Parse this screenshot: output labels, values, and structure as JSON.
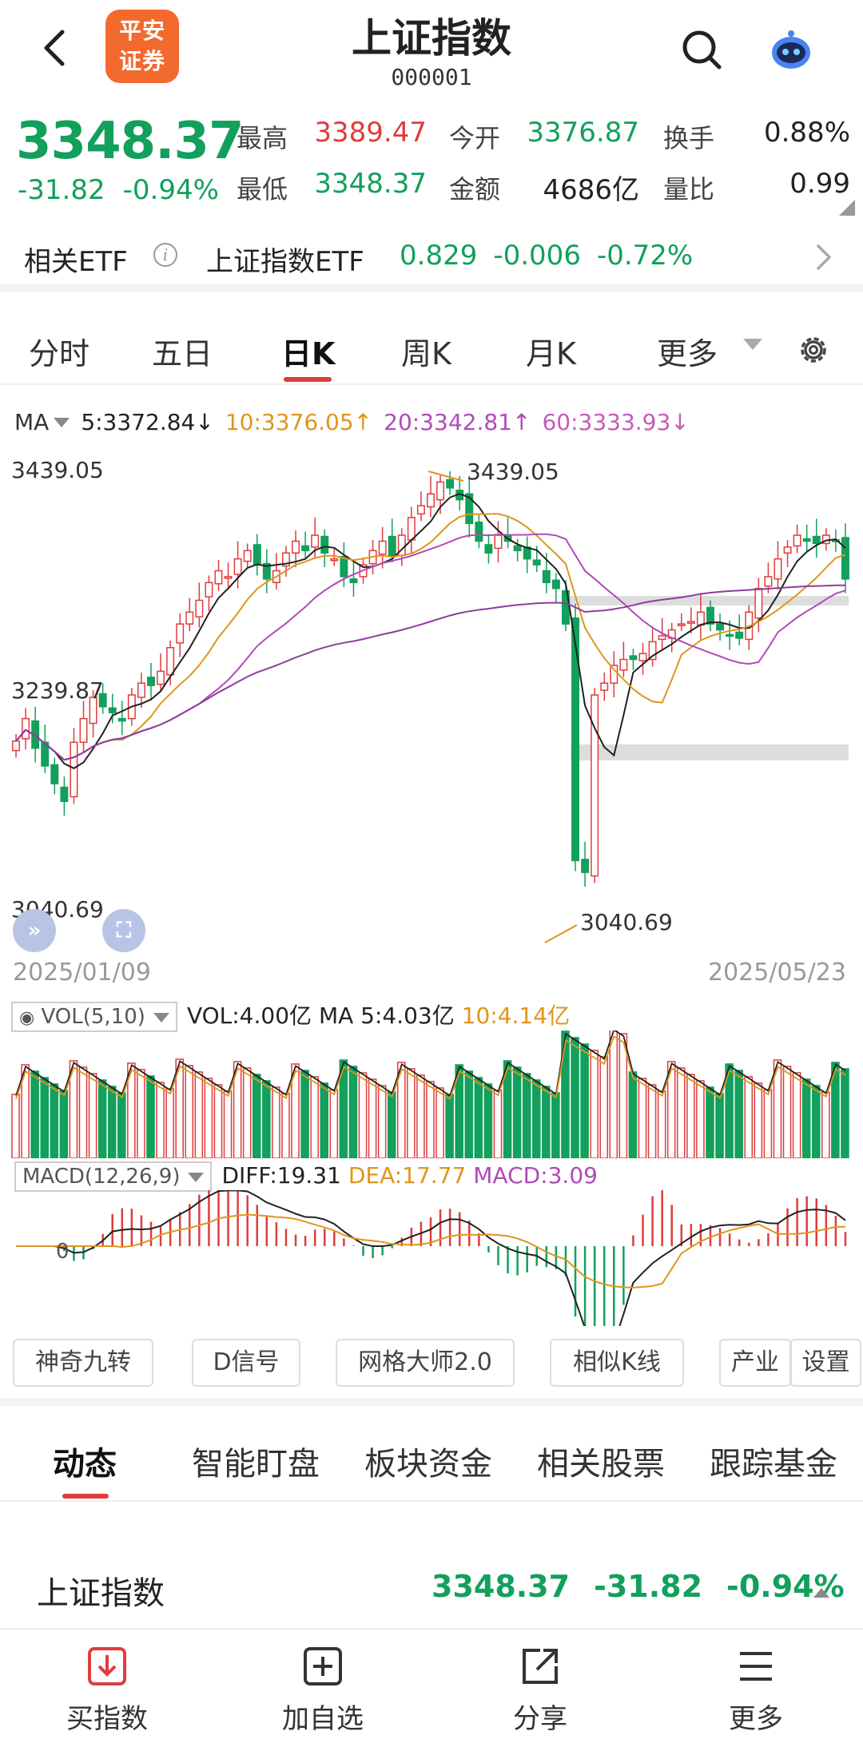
{
  "header": {
    "logo_text_top": "平安",
    "logo_text_bottom": "证券",
    "title": "上证指数",
    "code": "000001",
    "icons": [
      "back-arrow-icon",
      "search-icon",
      "robot-assistant-icon"
    ]
  },
  "quote": {
    "price": "3348.37",
    "change": "-31.82",
    "change_pct": "-0.94%",
    "high_label": "最高",
    "high": "3389.47",
    "low_label": "最低",
    "low": "3348.37",
    "open_label": "今开",
    "open": "3376.87",
    "amount_label": "金额",
    "amount": "4686亿",
    "turnover_label": "换手",
    "turnover": "0.88%",
    "vol_ratio_label": "量比",
    "vol_ratio": "0.99"
  },
  "etf": {
    "label": "相关ETF",
    "info_icon": "i",
    "name": "上证指数ETF",
    "price": "0.829",
    "change": "-0.006",
    "change_pct": "-0.72%"
  },
  "period_tabs": {
    "items": [
      "分时",
      "五日",
      "日K",
      "周K",
      "月K",
      "更多"
    ],
    "active": "日K"
  },
  "ma": {
    "label": "MA",
    "ma5": "5:3372.84↓",
    "ma10": "10:3376.05↑",
    "ma20": "20:3342.81↑",
    "ma60": "60:3333.93↓"
  },
  "kline_axis": {
    "high": "3439.05",
    "mid": "3239.87",
    "low": "3040.69",
    "high_marker": "3439.05",
    "low_marker": "3040.69",
    "start_date": "2025/01/09",
    "end_date": "2025/05/23"
  },
  "volume": {
    "indicator": "VOL(5,10)",
    "vol": "VOL:4.00亿",
    "ma5": "MA 5:4.03亿",
    "ma10": "10:4.14亿"
  },
  "macd": {
    "indicator": "MACD(12,26,9)",
    "diff": "DIFF:19.31",
    "dea": "DEA:17.77",
    "macd": "MACD:3.09",
    "axis_label": "0"
  },
  "tools": [
    "神奇九转",
    "D信号",
    "网格大师2.0",
    "相似K线",
    "产业",
    "设置"
  ],
  "section_tabs": {
    "items": [
      "动态",
      "智能盯盘",
      "板块资金",
      "相关股票",
      "跟踪基金"
    ],
    "active": "动态"
  },
  "index_row": {
    "name": "上证指数",
    "price": "3348.37",
    "change": "-31.82",
    "change_pct": "-0.94%"
  },
  "bottom_nav": {
    "buy": "买指数",
    "add": "加自选",
    "share": "分享",
    "more": "更多"
  },
  "colors": {
    "up": "#e03c3c",
    "down": "#12a05c",
    "ma5": "#222222",
    "ma10": "#e0951c",
    "ma20": "#b04ab8",
    "ma60": "#12a05c",
    "brand": "#f26a2e"
  },
  "chart_data": {
    "type": "line",
    "ylim": [
      3040.69,
      3439.05
    ],
    "x_start": "2025/01/09",
    "x_end": "2025/05/23",
    "series": [
      {
        "name": "5",
        "last": 3372.84
      },
      {
        "name": "10",
        "last": 3376.05
      },
      {
        "name": "20",
        "last": 3342.81
      },
      {
        "name": "60",
        "last": 3333.93
      }
    ],
    "close": [
      3211,
      3230,
      3205,
      3190,
      3175,
      3160,
      3210,
      3230,
      3248,
      3240,
      3235,
      3228,
      3250,
      3260,
      3258,
      3270,
      3290,
      3310,
      3320,
      3330,
      3345,
      3355,
      3350,
      3365,
      3372,
      3360,
      3348,
      3355,
      3370,
      3380,
      3372,
      3385,
      3370,
      3365,
      3350,
      3345,
      3360,
      3372,
      3380,
      3368,
      3385,
      3400,
      3410,
      3420,
      3430,
      3425,
      3415,
      3395,
      3380,
      3370,
      3385,
      3380,
      3372,
      3365,
      3360,
      3345,
      3340,
      3310,
      3110,
      3100,
      3250,
      3260,
      3275,
      3280,
      3280,
      3285,
      3295,
      3300,
      3305,
      3310,
      3312,
      3320,
      3310,
      3305,
      3300,
      3298,
      3320,
      3340,
      3350,
      3365,
      3375,
      3385,
      3380,
      3378,
      3385,
      3380,
      3348
    ],
    "volume_bars": 87
  }
}
